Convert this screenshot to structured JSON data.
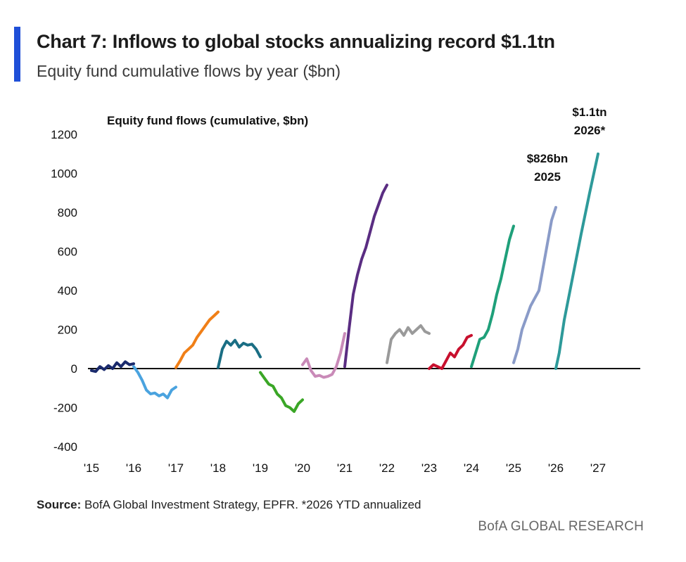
{
  "header": {
    "title": "Chart 7: Inflows to global stocks annualizing record $1.1tn",
    "subtitle": "Equity fund cumulative flows by year ($bn)"
  },
  "footer": {
    "source_label": "Source:",
    "source_text": " BofA Global Investment Strategy, EPFR. *2026 YTD annualized",
    "brand": "BofA GLOBAL RESEARCH"
  },
  "chart_data": {
    "type": "line",
    "title": "Equity fund flows (cumulative, $bn)",
    "xlabel": "",
    "ylabel": "",
    "ylim": [
      -400,
      1200
    ],
    "yticks": [
      1200,
      1000,
      800,
      600,
      400,
      200,
      0,
      -200,
      -400
    ],
    "xlim": [
      2015,
      2027
    ],
    "xticks": [
      {
        "value": 2015,
        "label": "'15"
      },
      {
        "value": 2016,
        "label": "'16"
      },
      {
        "value": 2017,
        "label": "'17"
      },
      {
        "value": 2018,
        "label": "'18"
      },
      {
        "value": 2019,
        "label": "'19"
      },
      {
        "value": 2020,
        "label": "'20"
      },
      {
        "value": 2021,
        "label": "'21"
      },
      {
        "value": 2022,
        "label": "'22"
      },
      {
        "value": 2023,
        "label": "'23"
      },
      {
        "value": 2024,
        "label": "'24"
      },
      {
        "value": 2025,
        "label": "'25"
      },
      {
        "value": 2026,
        "label": "'26"
      },
      {
        "value": 2027,
        "label": "'27"
      }
    ],
    "series": [
      {
        "name": "2015",
        "color": "#1a2a6c",
        "x": [
          2015.0,
          2015.1,
          2015.2,
          2015.3,
          2015.4,
          2015.5,
          2015.6,
          2015.7,
          2015.8,
          2015.9,
          2016.0
        ],
        "values": [
          -10,
          -15,
          10,
          -5,
          15,
          0,
          30,
          10,
          35,
          20,
          25
        ]
      },
      {
        "name": "2016",
        "color": "#4aa3df",
        "x": [
          2016.0,
          2016.1,
          2016.2,
          2016.3,
          2016.4,
          2016.5,
          2016.6,
          2016.7,
          2016.8,
          2016.9,
          2017.0
        ],
        "values": [
          10,
          -20,
          -60,
          -110,
          -130,
          -125,
          -140,
          -130,
          -150,
          -110,
          -95
        ]
      },
      {
        "name": "2017",
        "color": "#f07f17",
        "x": [
          2017.0,
          2017.1,
          2017.2,
          2017.3,
          2017.4,
          2017.5,
          2017.6,
          2017.7,
          2017.8,
          2017.9,
          2018.0
        ],
        "values": [
          5,
          40,
          80,
          100,
          120,
          160,
          190,
          220,
          250,
          270,
          290
        ]
      },
      {
        "name": "2018",
        "color": "#1a6e84",
        "x": [
          2018.0,
          2018.1,
          2018.2,
          2018.3,
          2018.4,
          2018.5,
          2018.6,
          2018.7,
          2018.8,
          2018.9,
          2019.0
        ],
        "values": [
          5,
          100,
          140,
          120,
          145,
          110,
          130,
          120,
          125,
          100,
          60
        ]
      },
      {
        "name": "2019",
        "color": "#3aa626",
        "x": [
          2019.0,
          2019.1,
          2019.2,
          2019.3,
          2019.4,
          2019.5,
          2019.6,
          2019.7,
          2019.8,
          2019.9,
          2020.0
        ],
        "values": [
          -20,
          -50,
          -80,
          -90,
          -130,
          -150,
          -190,
          -200,
          -220,
          -180,
          -160
        ]
      },
      {
        "name": "2020",
        "color": "#c98ab8",
        "x": [
          2020.0,
          2020.1,
          2020.2,
          2020.3,
          2020.4,
          2020.5,
          2020.6,
          2020.7,
          2020.8,
          2020.9,
          2021.0
        ],
        "values": [
          20,
          50,
          -10,
          -40,
          -35,
          -45,
          -40,
          -30,
          10,
          80,
          180
        ]
      },
      {
        "name": "2021",
        "color": "#5a2d82",
        "x": [
          2021.0,
          2021.1,
          2021.2,
          2021.3,
          2021.4,
          2021.5,
          2021.6,
          2021.7,
          2021.8,
          2021.9,
          2022.0
        ],
        "values": [
          10,
          200,
          380,
          480,
          560,
          620,
          700,
          780,
          840,
          900,
          940
        ]
      },
      {
        "name": "2022",
        "color": "#9a9a9a",
        "x": [
          2022.0,
          2022.1,
          2022.2,
          2022.3,
          2022.4,
          2022.5,
          2022.6,
          2022.7,
          2022.8,
          2022.9,
          2023.0
        ],
        "values": [
          30,
          150,
          180,
          200,
          170,
          210,
          180,
          200,
          220,
          190,
          180
        ]
      },
      {
        "name": "2023",
        "color": "#c8102e",
        "x": [
          2023.0,
          2023.1,
          2023.2,
          2023.3,
          2023.4,
          2023.5,
          2023.6,
          2023.7,
          2023.8,
          2023.9,
          2024.0
        ],
        "values": [
          0,
          20,
          10,
          0,
          40,
          80,
          60,
          100,
          120,
          160,
          170
        ]
      },
      {
        "name": "2024",
        "color": "#1fa07a",
        "x": [
          2024.0,
          2024.1,
          2024.2,
          2024.3,
          2024.4,
          2024.5,
          2024.6,
          2024.7,
          2024.8,
          2024.9,
          2025.0
        ],
        "values": [
          10,
          80,
          150,
          160,
          200,
          280,
          380,
          460,
          560,
          660,
          730
        ]
      },
      {
        "name": "2025",
        "color": "#8a9bc8",
        "x": [
          2025.0,
          2025.1,
          2025.2,
          2025.3,
          2025.4,
          2025.5,
          2025.6,
          2025.7,
          2025.8,
          2025.9,
          2026.0
        ],
        "values": [
          30,
          100,
          200,
          260,
          320,
          360,
          400,
          520,
          640,
          760,
          826
        ]
      },
      {
        "name": "2026",
        "color": "#2e9a9a",
        "x": [
          2026.0,
          2026.08,
          2026.2,
          2026.4,
          2026.6,
          2026.8,
          2027.0
        ],
        "values": [
          0,
          80,
          250,
          470,
          690,
          900,
          1100
        ]
      }
    ],
    "annotations": [
      {
        "lines": [
          "$826bn",
          "2025"
        ]
      },
      {
        "lines": [
          "$1.1tn",
          "2026*"
        ]
      }
    ]
  }
}
